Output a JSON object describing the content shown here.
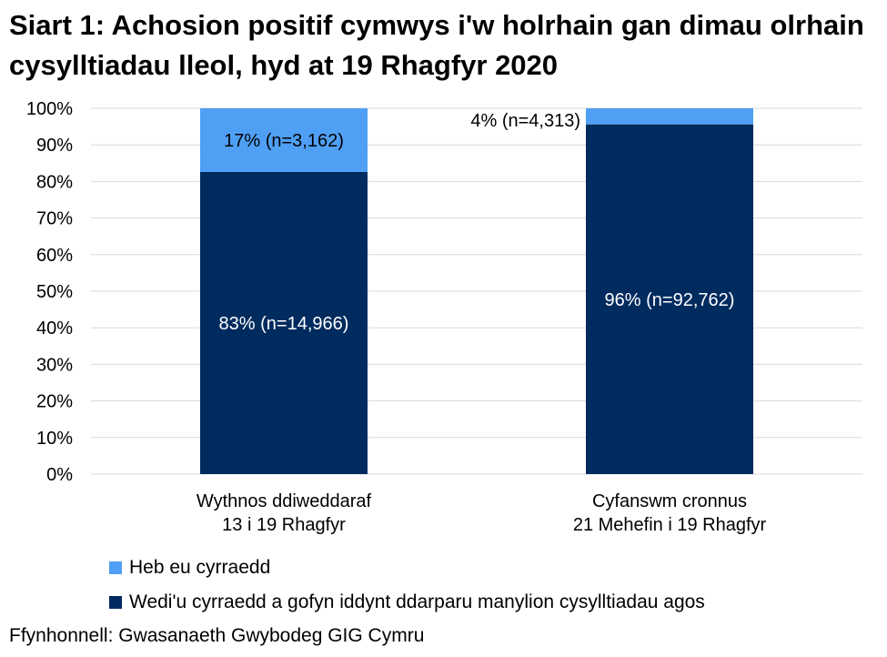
{
  "title": "Siart 1: Achosion positif cymwys i'w holrhain gan dimau olrhain cysylltiadau lleol, hyd at 19 Rhagfyr 2020",
  "source": "Ffynhonnell: Gwasanaeth Gwybodeg GIG Cymru",
  "chart_data": {
    "type": "bar",
    "stacked": true,
    "categories": [
      [
        "Wythnos ddiweddaraf",
        "13 i 19 Rhagfyr"
      ],
      [
        "Cyfanswm cronnus",
        "21 Mehefin i 19 Rhagfyr"
      ]
    ],
    "series": [
      {
        "name": "Wedi'u cyrraedd a gofyn iddynt ddarparu manylion cysylltiadau agos",
        "color": "#002B5F",
        "values": [
          82.6,
          95.6
        ],
        "labels": [
          "83% (n=14,966)",
          "96% (n=92,762)"
        ]
      },
      {
        "name": "Heb eu cyrraedd",
        "color": "#4F9FF5",
        "values": [
          17.4,
          4.4
        ],
        "labels": [
          "17% (n=3,162)",
          "4% (n=4,313)"
        ]
      }
    ],
    "yticks": [
      "0%",
      "10%",
      "20%",
      "30%",
      "40%",
      "50%",
      "60%",
      "70%",
      "80%",
      "90%",
      "100%"
    ],
    "ylim": [
      0,
      100
    ],
    "grid": true,
    "legend_position": "bottom"
  }
}
